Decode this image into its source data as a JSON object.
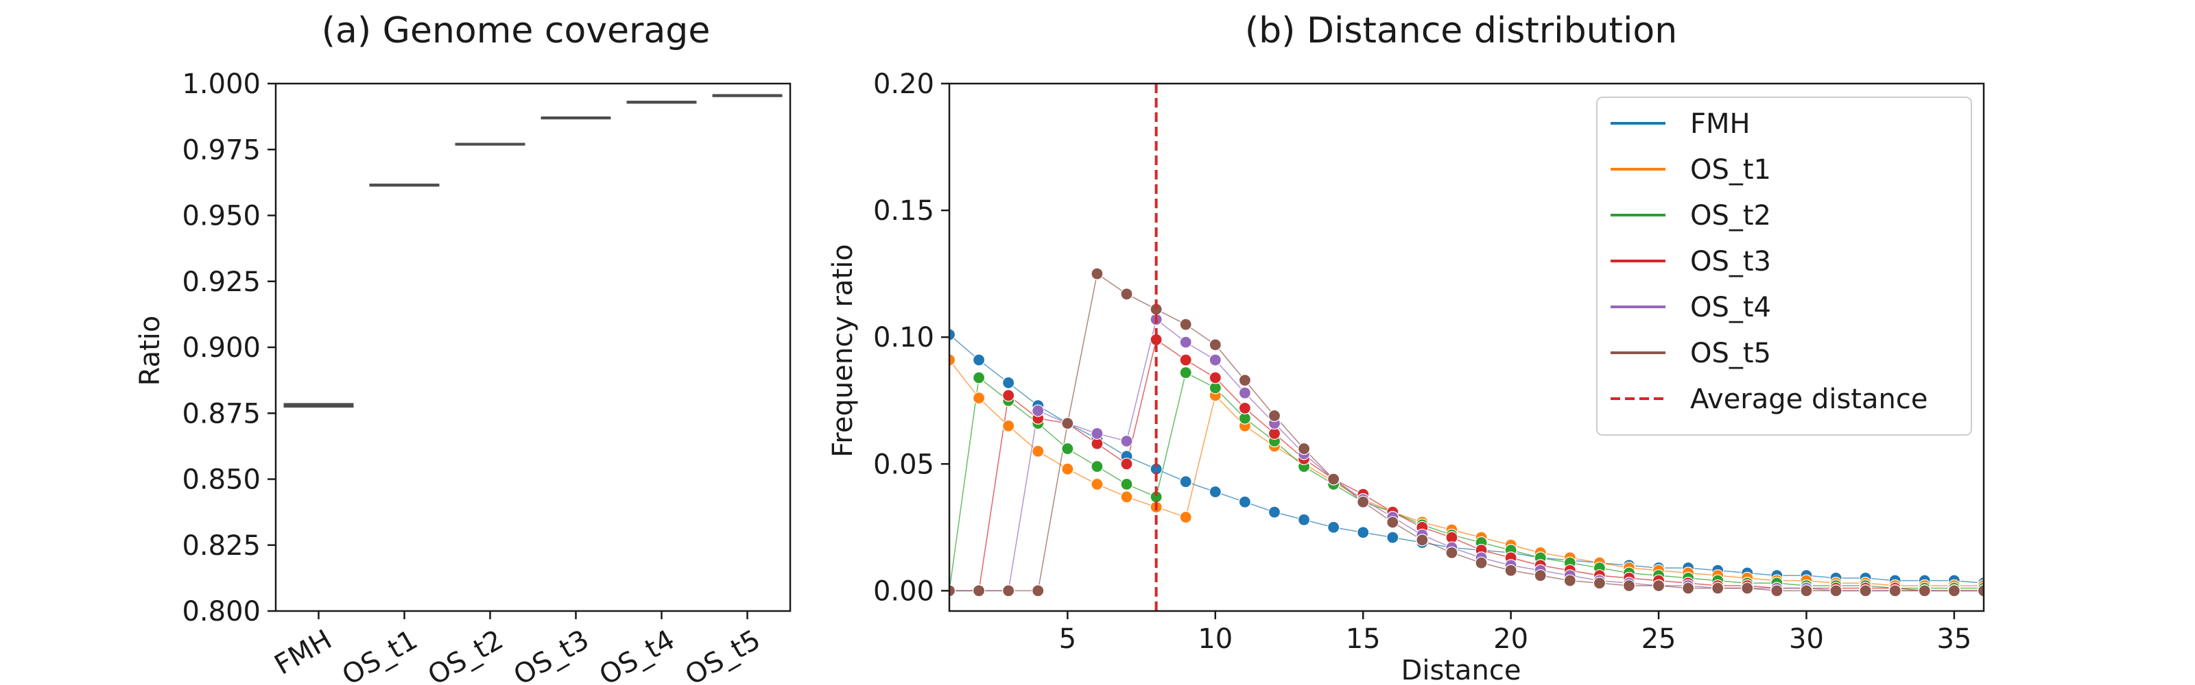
{
  "chart_data": [
    {
      "type": "box",
      "title": "(a) Genome coverage",
      "xlabel": "",
      "ylabel": "Ratio",
      "ylim": [
        0.8,
        1.0
      ],
      "yticks": [
        "0.800",
        "0.825",
        "0.850",
        "0.875",
        "0.900",
        "0.925",
        "0.950",
        "0.975",
        "1.000"
      ],
      "categories": [
        "FMH",
        "OS_t1",
        "OS_t2",
        "OS_t3",
        "OS_t4",
        "OS_t5"
      ],
      "medians": [
        0.878,
        0.9615,
        0.977,
        0.987,
        0.993,
        0.9955
      ],
      "spread": [
        0.0012,
        0.0006,
        0.0005,
        0.0004,
        0.0003,
        0.0003
      ],
      "box_color": "#4d4d4d",
      "grid": false
    },
    {
      "type": "line",
      "title": "(b) Distance distribution",
      "xlabel": "Distance",
      "ylabel": "Frequency ratio",
      "xlim": [
        1,
        36
      ],
      "ylim": [
        -0.008,
        0.2
      ],
      "xticks": [
        5,
        10,
        15,
        20,
        25,
        30,
        35
      ],
      "yticks": [
        "0.00",
        "0.05",
        "0.10",
        "0.15",
        "0.20"
      ],
      "x": [
        1,
        2,
        3,
        4,
        5,
        6,
        7,
        8,
        9,
        10,
        11,
        12,
        13,
        14,
        15,
        16,
        17,
        18,
        19,
        20,
        21,
        22,
        23,
        24,
        25,
        26,
        27,
        28,
        29,
        30,
        31,
        32,
        33,
        34,
        35,
        36
      ],
      "series": [
        {
          "name": "FMH",
          "color": "#1f77b4",
          "values": [
            0.101,
            0.091,
            0.082,
            0.073,
            0.066,
            0.06,
            0.053,
            0.048,
            0.043,
            0.039,
            0.035,
            0.031,
            0.028,
            0.025,
            0.023,
            0.021,
            0.019,
            0.017,
            0.016,
            0.015,
            0.013,
            0.012,
            0.011,
            0.01,
            0.009,
            0.009,
            0.008,
            0.007,
            0.006,
            0.006,
            0.005,
            0.005,
            0.004,
            0.004,
            0.004,
            0.003
          ]
        },
        {
          "name": "OS_t1",
          "color": "#ff7f0e",
          "values": [
            0.091,
            0.076,
            0.065,
            0.055,
            0.048,
            0.042,
            0.037,
            0.033,
            0.029,
            0.077,
            0.065,
            0.057,
            0.05,
            0.043,
            0.036,
            0.031,
            0.027,
            0.024,
            0.021,
            0.018,
            0.015,
            0.013,
            0.011,
            0.009,
            0.008,
            0.007,
            0.006,
            0.005,
            0.004,
            0.004,
            0.003,
            0.003,
            0.002,
            0.002,
            0.002,
            0.002
          ]
        },
        {
          "name": "OS_t2",
          "color": "#2ca02c",
          "values": [
            0.0,
            0.084,
            0.075,
            0.066,
            0.056,
            0.049,
            0.042,
            0.037,
            0.086,
            0.08,
            0.068,
            0.059,
            0.049,
            0.042,
            0.035,
            0.031,
            0.026,
            0.022,
            0.019,
            0.016,
            0.013,
            0.011,
            0.009,
            0.007,
            0.006,
            0.005,
            0.004,
            0.003,
            0.003,
            0.002,
            0.002,
            0.002,
            0.001,
            0.001,
            0.001,
            0.001
          ]
        },
        {
          "name": "OS_t3",
          "color": "#d62728",
          "values": [
            0.0,
            0.0,
            0.077,
            0.068,
            0.066,
            0.058,
            0.05,
            0.099,
            0.091,
            0.084,
            0.072,
            0.062,
            0.052,
            0.044,
            0.038,
            0.031,
            0.025,
            0.021,
            0.016,
            0.013,
            0.01,
            0.008,
            0.006,
            0.005,
            0.004,
            0.003,
            0.002,
            0.002,
            0.001,
            0.001,
            0.001,
            0.001,
            0.001,
            0.0,
            0.0,
            0.0
          ]
        },
        {
          "name": "OS_t4",
          "color": "#9467bd",
          "values": [
            0.0,
            0.0,
            0.0,
            0.071,
            0.066,
            0.062,
            0.059,
            0.107,
            0.098,
            0.091,
            0.078,
            0.066,
            0.054,
            0.044,
            0.036,
            0.029,
            0.022,
            0.017,
            0.013,
            0.01,
            0.008,
            0.006,
            0.004,
            0.003,
            0.002,
            0.002,
            0.001,
            0.001,
            0.001,
            0.001,
            0.0,
            0.0,
            0.0,
            0.0,
            0.0,
            0.0
          ]
        },
        {
          "name": "OS_t5",
          "color": "#8c564b",
          "values": [
            0.0,
            0.0,
            0.0,
            0.0,
            0.066,
            0.125,
            0.117,
            0.111,
            0.105,
            0.097,
            0.083,
            0.069,
            0.056,
            0.044,
            0.035,
            0.027,
            0.02,
            0.015,
            0.011,
            0.008,
            0.006,
            0.004,
            0.003,
            0.002,
            0.002,
            0.001,
            0.001,
            0.001,
            0.0,
            0.0,
            0.0,
            0.0,
            0.0,
            0.0,
            0.0,
            0.0
          ]
        }
      ],
      "reference_line": {
        "name": "Average distance",
        "x": 8,
        "color": "#d62728",
        "style": "dashed"
      },
      "legend": "top-right",
      "grid": false
    }
  ]
}
